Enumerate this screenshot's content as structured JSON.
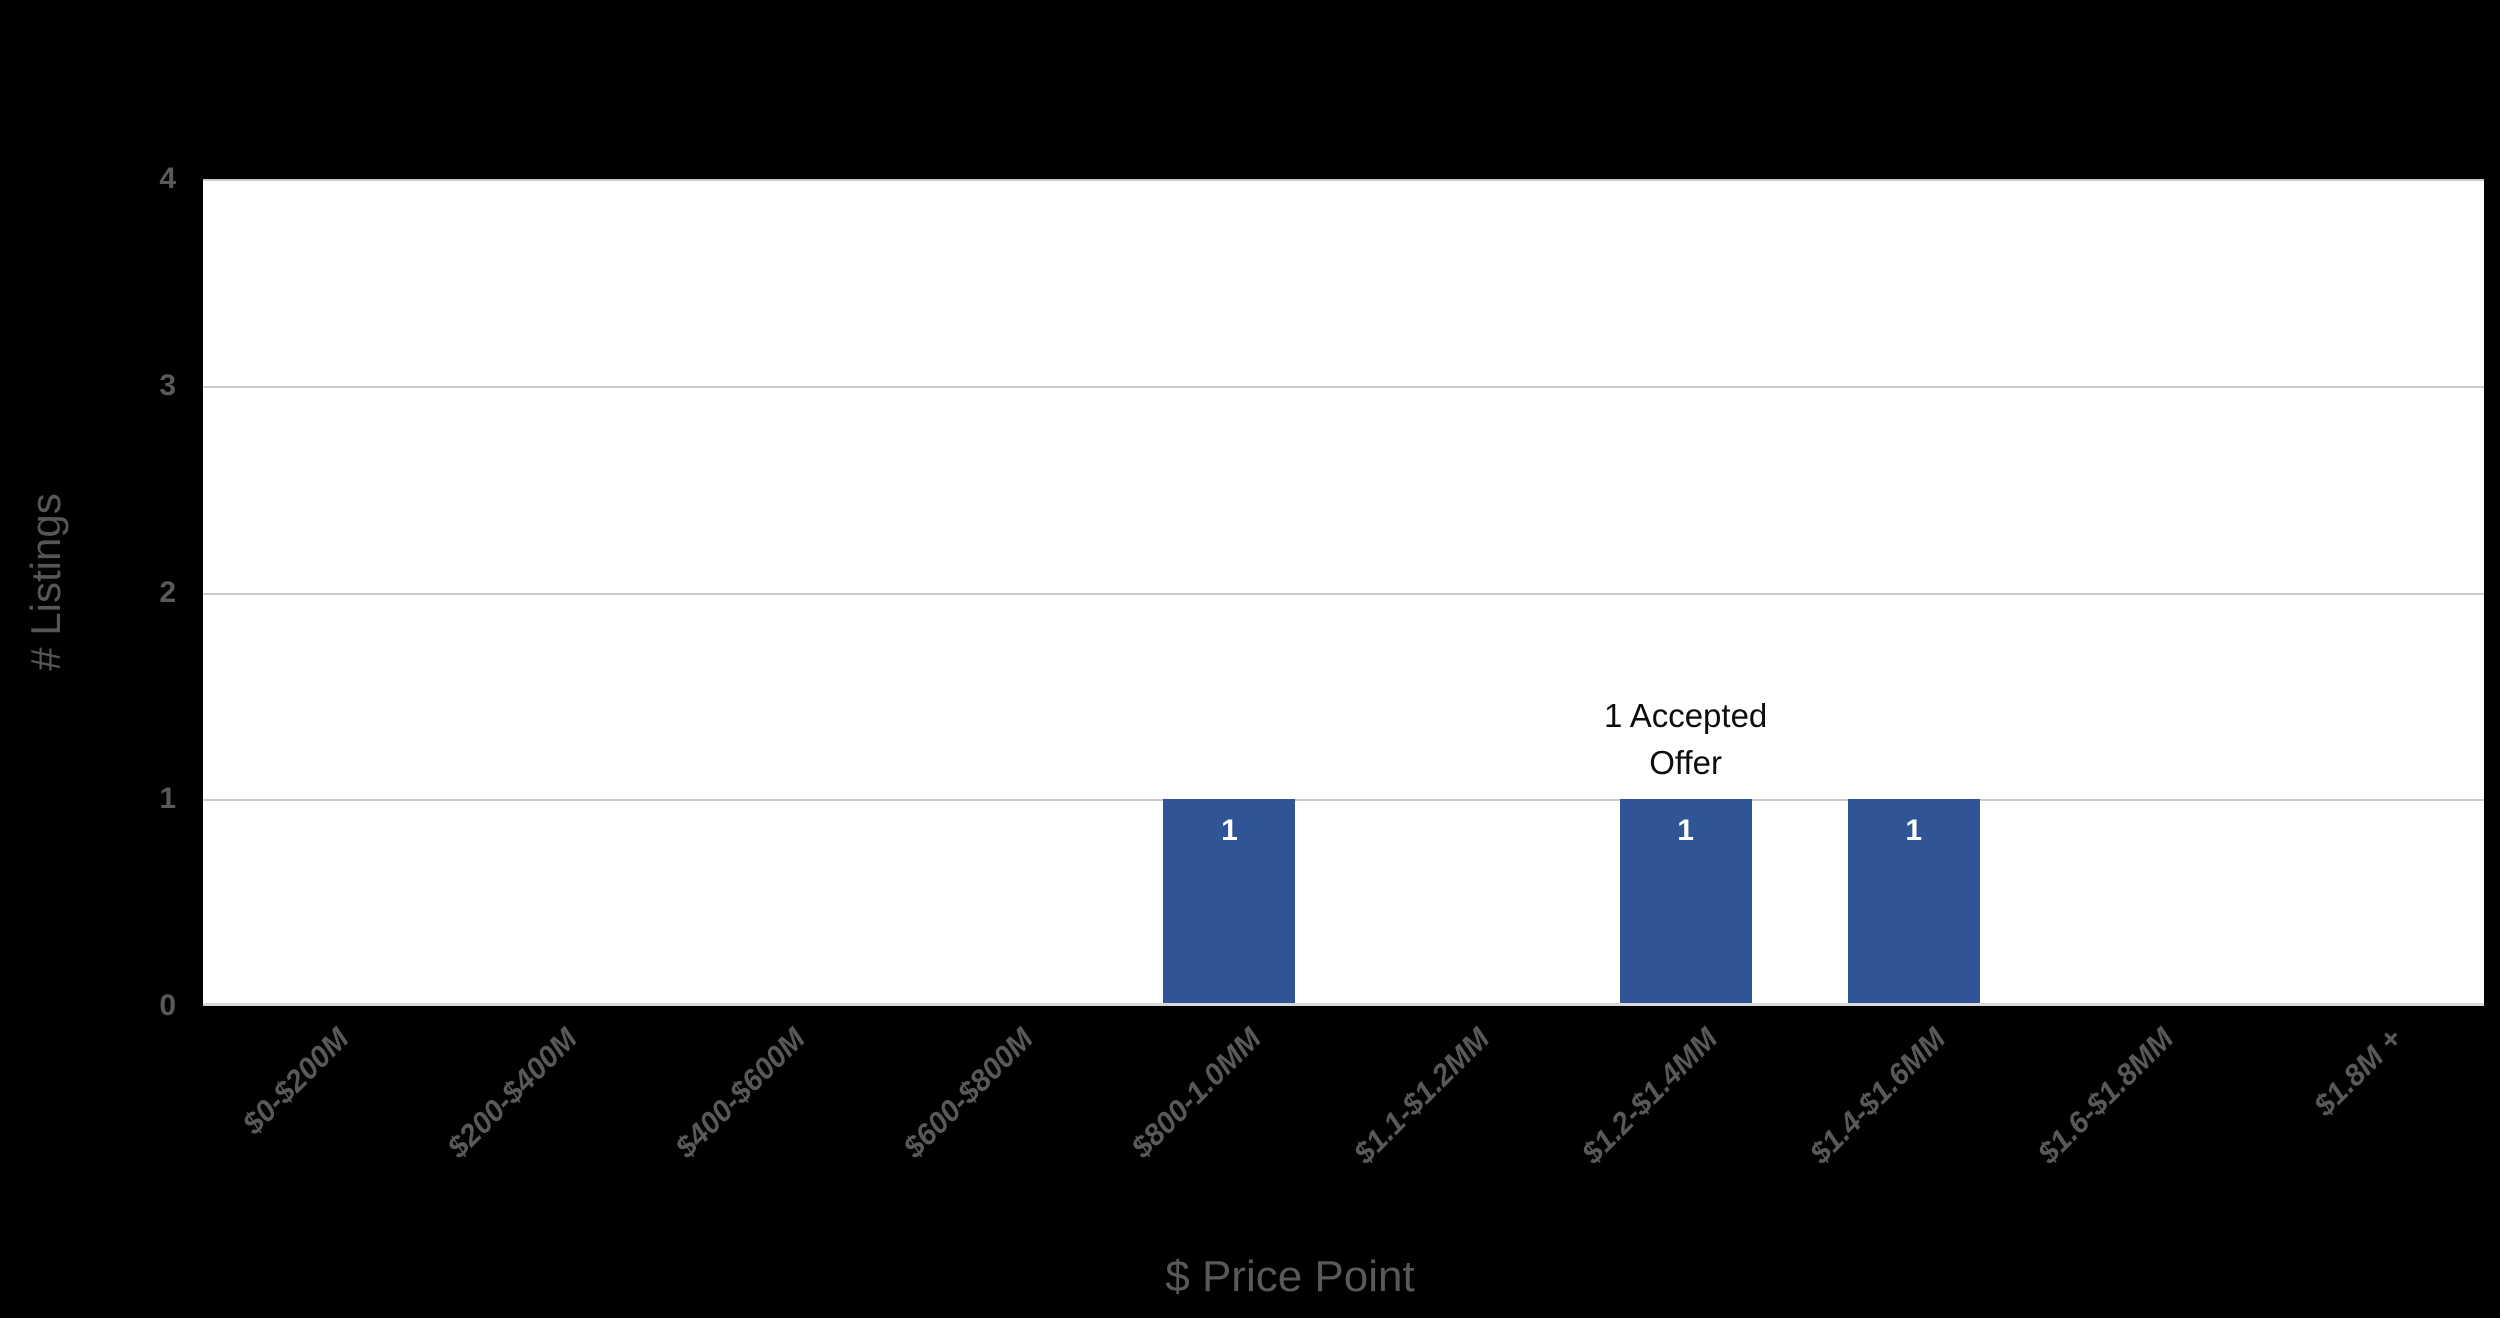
{
  "chart_data": {
    "type": "bar",
    "title": "",
    "categories": [
      "$0-$200M",
      "$200-$400M",
      "$400-$600M",
      "$600-$800M",
      "$800-1.0MM",
      "$1.1-$1.2MM",
      "$1.2-$1.4MM",
      "$1.4-$1.6MM",
      "$1.6-$1.8MM",
      "$1.8M +"
    ],
    "values": [
      0,
      0,
      0,
      0,
      1,
      0,
      1,
      1,
      0,
      0
    ],
    "xlabel": "$ Price Point",
    "ylabel": "# Listings",
    "ylim": [
      0,
      4
    ],
    "yticks": [
      0,
      1,
      2,
      3,
      4
    ],
    "grid": "horizontal",
    "legend": "none",
    "data_labels": "value shown in white inside top of each nonzero bar",
    "annotation": {
      "text": "1 Accepted Offer",
      "lines": [
        "1 Accepted",
        "Offer"
      ],
      "target_category": "$1.2-$1.4MM"
    },
    "colors": {
      "page_background": "#000000",
      "plot_background": "#FFFFFF",
      "bar_fill": "#2F5597",
      "data_label_text": "#FFFFFF",
      "gridline": "#CBCBCB",
      "axis_line": "#D9D9D9",
      "axis_text": "#595959",
      "annotation_text": "#0D0D0D"
    }
  }
}
